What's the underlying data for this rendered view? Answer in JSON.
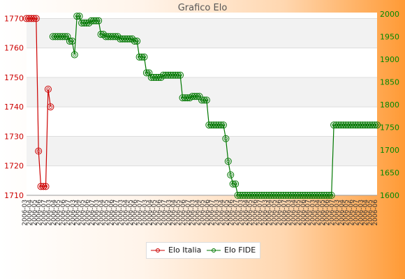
{
  "chart_data": {
    "type": "line",
    "title": "Grafico Elo",
    "x_tick_label_rows": [
      "2006-03",
      "2006-04",
      "2006-05",
      "2006-06",
      "2006-07"
    ],
    "left_axis": {
      "ticks": [
        1710,
        1720,
        1730,
        1740,
        1750,
        1760,
        1770
      ],
      "range": [
        1710,
        1772
      ],
      "color": "#cc0000"
    },
    "right_axis": {
      "ticks": [
        1600,
        1650,
        1700,
        1750,
        1800,
        1850,
        1900,
        1950,
        2000
      ],
      "range": [
        1600,
        2003
      ],
      "color": "#008800"
    },
    "grid": true,
    "legend": {
      "placement": "bottom-center"
    },
    "series": [
      {
        "name": "Elo Italia",
        "axis": "left",
        "color": "#cc0000",
        "values": [
          1770,
          1770,
          1770,
          1770,
          1770,
          1725,
          1713,
          1713,
          1713,
          1746,
          1740
        ]
      },
      {
        "name": "Elo FIDE",
        "axis": "right",
        "color": "#007700",
        "start_index": 11,
        "values": [
          1950,
          1950,
          1950,
          1950,
          1950,
          1950,
          1950,
          1940,
          1940,
          1910,
          1995,
          1995,
          1980,
          1980,
          1980,
          1980,
          1985,
          1985,
          1985,
          1985,
          1955,
          1955,
          1950,
          1950,
          1950,
          1950,
          1950,
          1950,
          1945,
          1945,
          1945,
          1945,
          1945,
          1945,
          1940,
          1940,
          1905,
          1905,
          1905,
          1870,
          1870,
          1860,
          1860,
          1860,
          1860,
          1860,
          1865,
          1865,
          1865,
          1865,
          1865,
          1865,
          1865,
          1865,
          1815,
          1815,
          1815,
          1815,
          1818,
          1818,
          1818,
          1818,
          1810,
          1810,
          1810,
          1755,
          1755,
          1755,
          1755,
          1755,
          1755,
          1755,
          1725,
          1675,
          1645,
          1625,
          1625,
          1600,
          1600,
          1600,
          1600,
          1600,
          1600,
          1600,
          1600,
          1600,
          1600,
          1600,
          1600,
          1600,
          1600,
          1600,
          1600,
          1600,
          1600,
          1600,
          1600,
          1600,
          1600,
          1600,
          1600,
          1600,
          1600,
          1600,
          1600,
          1600,
          1600,
          1600,
          1600,
          1600,
          1600,
          1600,
          1600,
          1600,
          1600,
          1600,
          1600,
          1755,
          1755,
          1755,
          1755,
          1755,
          1755,
          1755,
          1755,
          1755,
          1755,
          1755,
          1755,
          1755,
          1755,
          1755,
          1755,
          1755,
          1755,
          1755
        ]
      }
    ]
  }
}
